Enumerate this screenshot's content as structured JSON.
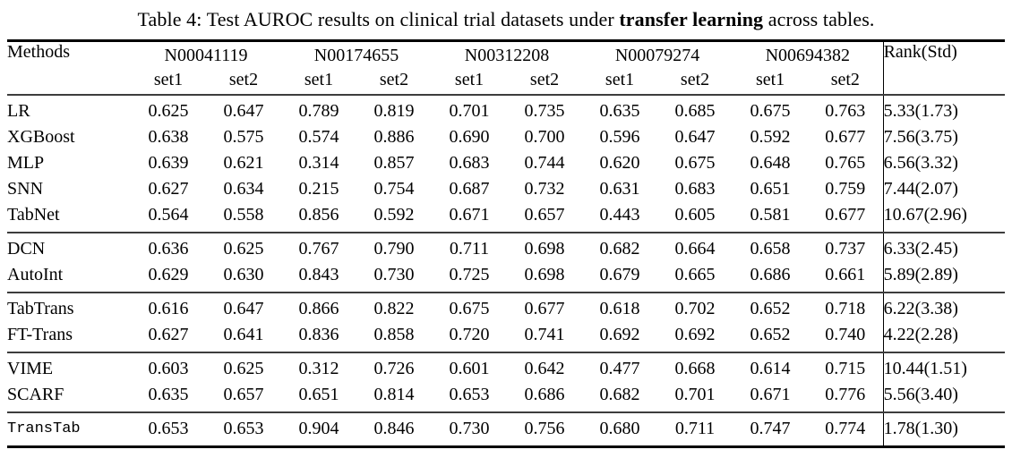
{
  "caption": {
    "prefix": "Table 4: Test AUROC results on clinical trial datasets under ",
    "bold": "transfer learning",
    "suffix": " across tables."
  },
  "colors": {
    "text": "#000000",
    "background": "#ffffff",
    "rule_heavy": "#000000",
    "rule_light": "#3d3d3d"
  },
  "table": {
    "col_headers": {
      "methods": "Methods",
      "rank": "Rank(Std)",
      "datasets": [
        "N00041119",
        "N00174655",
        "N00312208",
        "N00079274",
        "N00694382"
      ],
      "set_labels": [
        "set1",
        "set2"
      ]
    },
    "groups": [
      {
        "rows": [
          {
            "method": "LR",
            "mono": false,
            "values": [
              "0.625",
              "0.647",
              "0.789",
              "0.819",
              "0.701",
              "0.735",
              "0.635",
              "0.685",
              "0.675",
              "0.763"
            ],
            "bold_value_indices": [],
            "rank": "5.33(1.73)",
            "bold_rank": false
          },
          {
            "method": "XGBoost",
            "mono": false,
            "values": [
              "0.638",
              "0.575",
              "0.574",
              "0.886",
              "0.690",
              "0.700",
              "0.596",
              "0.647",
              "0.592",
              "0.677"
            ],
            "bold_value_indices": [
              3
            ],
            "rank": "7.56(3.75)",
            "bold_rank": false
          },
          {
            "method": "MLP",
            "mono": false,
            "values": [
              "0.639",
              "0.621",
              "0.314",
              "0.857",
              "0.683",
              "0.744",
              "0.620",
              "0.675",
              "0.648",
              "0.765"
            ],
            "bold_value_indices": [],
            "rank": "6.56(3.32)",
            "bold_rank": false
          },
          {
            "method": "SNN",
            "mono": false,
            "values": [
              "0.627",
              "0.634",
              "0.215",
              "0.754",
              "0.687",
              "0.732",
              "0.631",
              "0.683",
              "0.651",
              "0.759"
            ],
            "bold_value_indices": [],
            "rank": "7.44(2.07)",
            "bold_rank": false
          },
          {
            "method": "TabNet",
            "mono": false,
            "values": [
              "0.564",
              "0.558",
              "0.856",
              "0.592",
              "0.671",
              "0.657",
              "0.443",
              "0.605",
              "0.581",
              "0.677"
            ],
            "bold_value_indices": [],
            "rank": "10.67(2.96)",
            "bold_rank": false
          }
        ]
      },
      {
        "rows": [
          {
            "method": "DCN",
            "mono": false,
            "values": [
              "0.636",
              "0.625",
              "0.767",
              "0.790",
              "0.711",
              "0.698",
              "0.682",
              "0.664",
              "0.658",
              "0.737"
            ],
            "bold_value_indices": [],
            "rank": "6.33(2.45)",
            "bold_rank": false
          },
          {
            "method": "AutoInt",
            "mono": false,
            "values": [
              "0.629",
              "0.630",
              "0.843",
              "0.730",
              "0.725",
              "0.698",
              "0.679",
              "0.665",
              "0.686",
              "0.661"
            ],
            "bold_value_indices": [],
            "rank": "5.89(2.89)",
            "bold_rank": false
          }
        ]
      },
      {
        "rows": [
          {
            "method": "TabTrans",
            "mono": false,
            "values": [
              "0.616",
              "0.647",
              "0.866",
              "0.822",
              "0.675",
              "0.677",
              "0.618",
              "0.702",
              "0.652",
              "0.718"
            ],
            "bold_value_indices": [],
            "rank": "6.22(3.38)",
            "bold_rank": false
          },
          {
            "method": "FT-Trans",
            "mono": false,
            "values": [
              "0.627",
              "0.641",
              "0.836",
              "0.858",
              "0.720",
              "0.741",
              "0.692",
              "0.692",
              "0.652",
              "0.740"
            ],
            "bold_value_indices": [
              6
            ],
            "rank": "4.22(2.28)",
            "bold_rank": false
          }
        ]
      },
      {
        "rows": [
          {
            "method": "VIME",
            "mono": false,
            "values": [
              "0.603",
              "0.625",
              "0.312",
              "0.726",
              "0.601",
              "0.642",
              "0.477",
              "0.668",
              "0.614",
              "0.715"
            ],
            "bold_value_indices": [],
            "rank": "10.44(1.51)",
            "bold_rank": false
          },
          {
            "method": "SCARF",
            "mono": false,
            "values": [
              "0.635",
              "0.657",
              "0.651",
              "0.814",
              "0.653",
              "0.686",
              "0.682",
              "0.701",
              "0.671",
              "0.776"
            ],
            "bold_value_indices": [
              1,
              9
            ],
            "rank": "5.56(3.40)",
            "bold_rank": false
          }
        ]
      },
      {
        "rows": [
          {
            "method": "TransTab",
            "mono": true,
            "values": [
              "0.653",
              "0.653",
              "0.904",
              "0.846",
              "0.730",
              "0.756",
              "0.680",
              "0.711",
              "0.747",
              "0.774"
            ],
            "bold_value_indices": [
              0,
              2,
              4,
              5,
              7,
              8
            ],
            "rank": "1.78(1.30)",
            "bold_rank": true
          }
        ]
      }
    ]
  }
}
